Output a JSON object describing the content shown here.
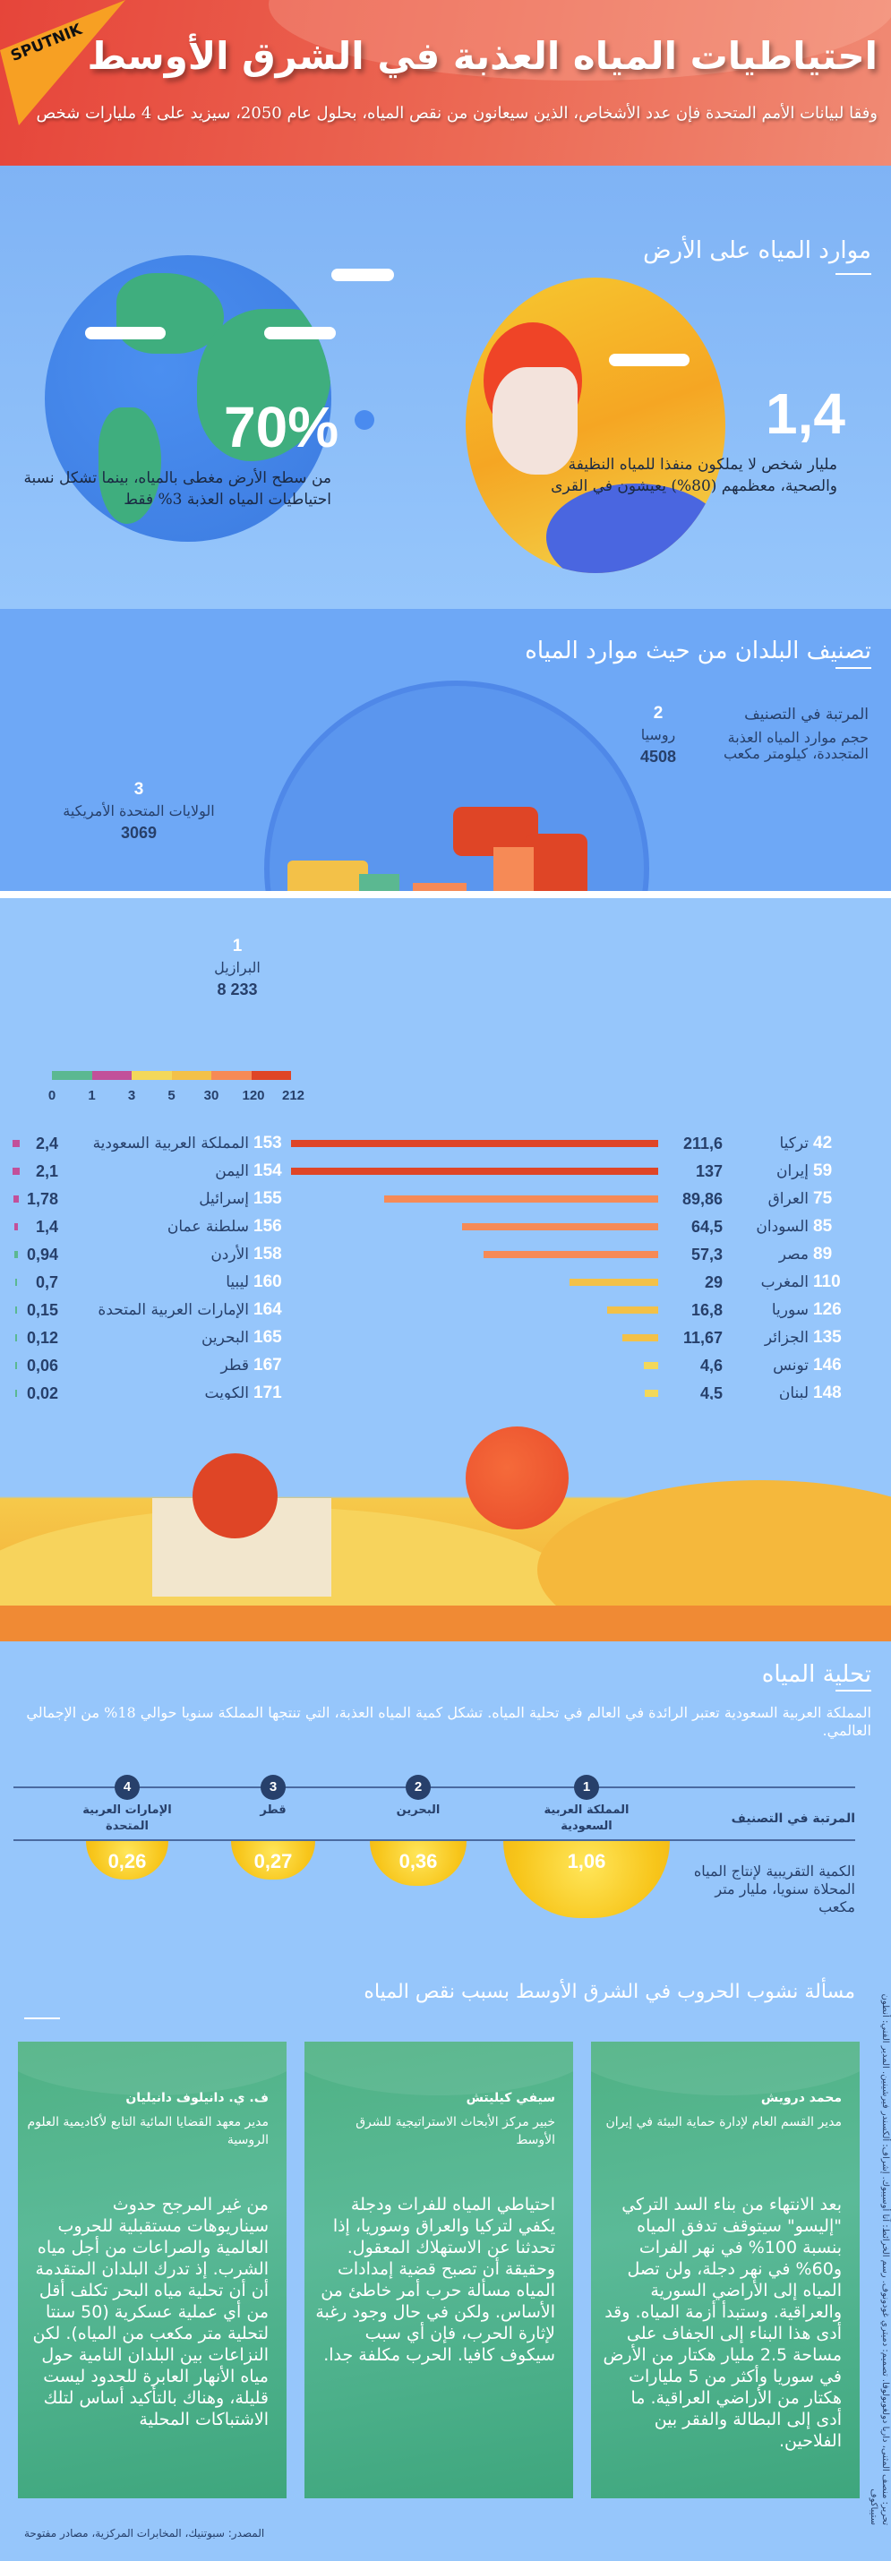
{
  "header": {
    "logo": "SPUTNIK",
    "title": "احتياطيات المياه العذبة في الشرق الأوسط",
    "subtitle": "وفقا لبيانات الأمم المتحدة فإن عدد الأشخاص، الذين سيعانون من نقص المياه، بحلول عام 2050، سيزيد على 4 مليارات شخص"
  },
  "earth": {
    "title": "موارد المياه على الأرض",
    "stat1": {
      "value": "70%",
      "text": "من سطح الأرض مغطى بالمياه، بينما تشكل نسبة احتياطيات المياه العذبة 3% فقط"
    },
    "stat2": {
      "value": "1,4",
      "text": "مليار شخص لا يملكون منفذا للمياه النظيفة والصحية، معظمهم (80%) يعيشون في القرى"
    }
  },
  "ranking": {
    "title": "تصنيف البلدان من حيث موارد المياه",
    "legend_rank": "المرتبة في التصنيف",
    "legend_volume": "حجم موارد المياه العذبة المتجددة، كيلومتر مكعب",
    "top": [
      {
        "rank": "1",
        "name": "البرازيل",
        "value": "8 233"
      },
      {
        "rank": "2",
        "name": "روسيا",
        "value": "4508"
      },
      {
        "rank": "3",
        "name": "الولايات المتحدة الأمريكية",
        "value": "3069"
      }
    ],
    "scale": {
      "ticks": [
        "0",
        "1",
        "3",
        "5",
        "30",
        "120",
        "212"
      ],
      "colors": [
        "#5bb891",
        "#c2509a",
        "#f3d85a",
        "#f3c148",
        "#f68a56",
        "#df4526"
      ]
    }
  },
  "chart_data": {
    "type": "bar",
    "unit": "كيلومتر مكعب",
    "right": [
      {
        "rank": "42",
        "name": "تركيا",
        "value": "211,6",
        "v": 211.6
      },
      {
        "rank": "59",
        "name": "إيران",
        "value": "137",
        "v": 137
      },
      {
        "rank": "75",
        "name": "العراق",
        "value": "89,86",
        "v": 89.86
      },
      {
        "rank": "85",
        "name": "السودان",
        "value": "64,5",
        "v": 64.5
      },
      {
        "rank": "89",
        "name": "مصر",
        "value": "57,3",
        "v": 57.3
      },
      {
        "rank": "110",
        "name": "المغرب",
        "value": "29",
        "v": 29
      },
      {
        "rank": "126",
        "name": "سوريا",
        "value": "16,8",
        "v": 16.8
      },
      {
        "rank": "135",
        "name": "الجزائر",
        "value": "11,67",
        "v": 11.67
      },
      {
        "rank": "146",
        "name": "تونس",
        "value": "4,6",
        "v": 4.6
      },
      {
        "rank": "148",
        "name": "لبنان",
        "value": "4,5",
        "v": 4.5
      }
    ],
    "left": [
      {
        "rank": "153",
        "name": "المملكة العربية السعودية",
        "value": "2,4",
        "v": 2.4
      },
      {
        "rank": "154",
        "name": "اليمن",
        "value": "2,1",
        "v": 2.1
      },
      {
        "rank": "155",
        "name": "إسرائيل",
        "value": "1,78",
        "v": 1.78
      },
      {
        "rank": "156",
        "name": "سلطنة عمان",
        "value": "1,4",
        "v": 1.4
      },
      {
        "rank": "158",
        "name": "الأردن",
        "value": "0,94",
        "v": 0.94
      },
      {
        "rank": "160",
        "name": "ليبيا",
        "value": "0,7",
        "v": 0.7
      },
      {
        "rank": "164",
        "name": "الإمارات العربية المتحدة",
        "value": "0,15",
        "v": 0.15
      },
      {
        "rank": "165",
        "name": "البحرين",
        "value": "0,12",
        "v": 0.12
      },
      {
        "rank": "167",
        "name": "قطر",
        "value": "0,06",
        "v": 0.06
      },
      {
        "rank": "171",
        "name": "الكويت",
        "value": "0,02",
        "v": 0.02
      }
    ]
  },
  "desal": {
    "title": "تحلية المياه",
    "text": "المملكة العربية السعودية تعتبر الرائدة في العالم في تحلية المياه. تشكل كمية المياه العذبة، التي تنتجها المملكة سنويا حوالي 18% من الإجمالي العالمي.",
    "rank_label": "المرتبة في التصنيف",
    "amount_label": "الكمية التقريبية لإنتاج المياه المحلاة سنويا، مليار متر مكعب",
    "items": [
      {
        "rank": "1",
        "name": "المملكة العربية السعودية",
        "value": "1,06"
      },
      {
        "rank": "2",
        "name": "البحرين",
        "value": "0,36"
      },
      {
        "rank": "3",
        "name": "قطر",
        "value": "0,27"
      },
      {
        "rank": "4",
        "name": "الإمارات العربية المتحدة",
        "value": "0,26"
      }
    ]
  },
  "wars": {
    "title": "مسألة نشوب الحروب في الشرق الأوسط بسبب نقص المياه",
    "cards": [
      {
        "name": "محمد درويش",
        "role": "مدير القسم العام لإدارة حماية البيئة في إيران",
        "quote": "بعد الانتهاء من بناء السد التركي \"إليسو\" سيتوقف تدفق المياه بنسبة 100% في نهر الفرات و60% في نهر دجلة، ولن تصل المياه إلى الأراضي السورية والعراقية. وستبدأ أزمة المياه. وقد أدى هذا البناء إلى الجفاف على مساحة 2.5 مليار هكتار من الأرض في سوريا وأكثر من 5 مليارات هكتار من الأراضي العراقية. ما أدى إلى البطالة والفقر بين الفلاحين."
      },
      {
        "name": "سيفي كيليتش",
        "role": "خبير مركز الأبحاث الاستراتيجية للشرق الأوسط",
        "quote": "احتياطي المياه للفرات ودجلة يكفي لتركيا والعراق وسوريا، إذا تحدثنا عن الاستهلاك المعقول. وحقيقة أن تصبح قضية إمدادات المياه مسألة حرب أمر خاطئ من الأساس. ولكن في حال وجود رغبة لإثارة الحرب، فإن أي سبب سيكوف كافيا. الحرب مكلفة جدا."
      },
      {
        "name": "ف. ي. دانيلوف دانيليان",
        "role": "مدير معهد القضايا المائية التابع لأكاديمية العلوم الروسية",
        "quote": "من غير المرجح حدوث سيناريوهات مستقبلية للحروب العالمية والصراعات من أجل مياه الشرب. إذ تدرك البلدان المتقدمة أن أن تحلية مياه البحر تكلف أقل من أي عملية عسكرية (50 سنتا لتحلية متر مكعب من المياه). لكن النزاعات بين البلدان النامية حول مياه الأنهار العابرة للحدود ليست قليلة، وهناك بالتأكيد أساس لتلك الاشتباكات المحلية"
      }
    ]
  },
  "credits": "تحرير: منصف المثنى، داريا دولغوبولوفا. تصميم: دميتري غودونوف. رسم الخرائط: آنا أوسيبوك. إشراف: ألكسندر فيرشينين. المدير الفني: أنطون ستيباكوف",
  "source": "المصدر: سبوتنيك، المخابرات المركزية، مصادر مفتوحة"
}
